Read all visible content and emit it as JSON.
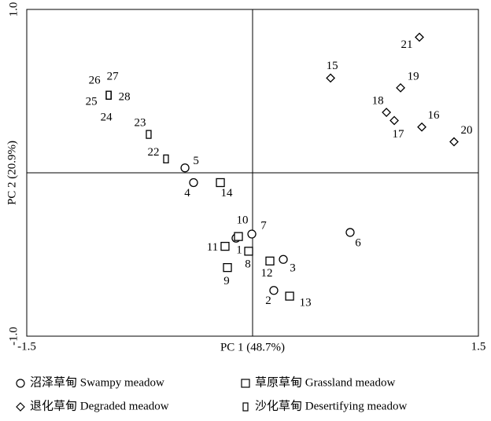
{
  "chart_data": {
    "type": "scatter",
    "xlabel": "PC 1 (48.7%)",
    "ylabel": "PC 2 (20.9%)",
    "xlim": [
      -1.5,
      1.5
    ],
    "ylim": [
      -1.0,
      1.0
    ],
    "xticks": [
      -1.5,
      1.5
    ],
    "yticks": [
      {
        "value": -1.0,
        "label": "-1.0"
      },
      {
        "value": 1.0,
        "label": "1.0"
      }
    ],
    "series": [
      {
        "name": "沼泽草甸 Swampy meadow",
        "marker": "circle",
        "labels": [
          "5",
          "4",
          "7",
          "1",
          "3",
          "2",
          "6"
        ],
        "x": [
          -0.449,
          -0.392,
          -0.005,
          -0.11,
          0.204,
          0.141,
          0.648
        ],
        "values": [
          0.03,
          -0.06,
          -0.375,
          -0.4,
          -0.53,
          -0.72,
          -0.365
        ]
      },
      {
        "name": "草原草甸 Grassland meadow",
        "marker": "square",
        "labels": [
          "14",
          "10",
          "11",
          "8",
          "9",
          "12",
          "13"
        ],
        "x": [
          -0.214,
          -0.094,
          -0.183,
          -0.026,
          -0.167,
          0.115,
          0.246
        ],
        "values": [
          -0.06,
          -0.39,
          -0.45,
          -0.48,
          -0.58,
          -0.54,
          -0.755
        ]
      },
      {
        "name": "退化草甸 Degraded meadow",
        "marker": "diamond",
        "labels": [
          "21",
          "15",
          "19",
          "18",
          "17",
          "16",
          "20"
        ],
        "x": [
          1.108,
          0.518,
          0.983,
          0.889,
          0.941,
          1.124,
          1.338
        ],
        "values": [
          0.83,
          0.58,
          0.52,
          0.37,
          0.32,
          0.28,
          0.19
        ]
      },
      {
        "name": "沙化草甸 Desertifying meadow",
        "marker": "narrow",
        "labels": [
          "26",
          "27",
          "28",
          "25",
          "24",
          "23",
          "22"
        ],
        "x": [
          -0.956,
          -0.956,
          -0.956,
          -0.956,
          -0.956,
          -0.69,
          -0.575
        ],
        "values": [
          0.475,
          0.475,
          0.475,
          0.475,
          0.475,
          0.235,
          0.085
        ]
      }
    ]
  }
}
